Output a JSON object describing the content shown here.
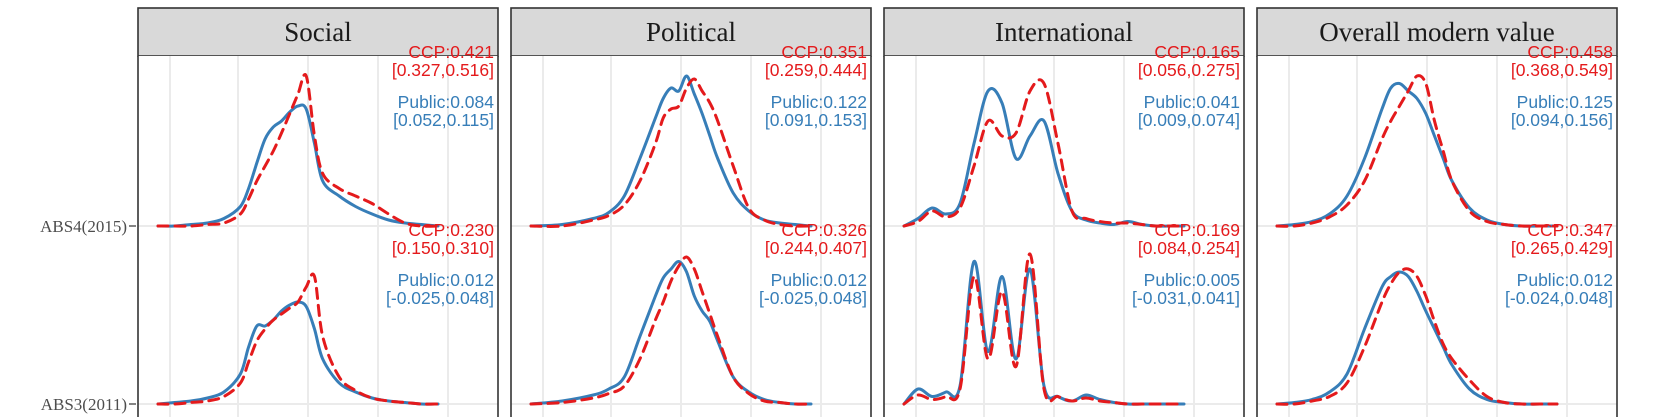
{
  "colors": {
    "ccp": "#e41a1c",
    "public": "#377eb8",
    "strip": "#d9d9d9",
    "grid": "#ebebeb",
    "border": "#333333"
  },
  "chart_data": {
    "type": "line",
    "title": "",
    "xlabel": "",
    "ylabel": "",
    "rows": [
      "ABS4(2015)",
      "ABS3(2011)"
    ],
    "grid": true,
    "panels": [
      {
        "title": "Social",
        "rows": [
          {
            "ccp_label": "CCP:0.421",
            "ccp_ci": "[0.327,0.516]",
            "public_label": "Public:0.084",
            "public_ci": "[0.052,0.115]",
            "xs": [
              -0.5,
              -0.4,
              -0.3,
              -0.2,
              -0.1,
              0.0,
              0.05,
              0.1,
              0.15,
              0.2,
              0.25,
              0.3,
              0.35,
              0.4,
              0.45,
              0.5,
              0.6,
              0.7,
              0.8,
              0.9,
              1.0,
              1.1,
              1.2
            ],
            "series": [
              {
                "name": "Public",
                "values": [
                  0,
                  0,
                  0.01,
                  0.02,
                  0.05,
                  0.13,
                  0.25,
                  0.42,
                  0.58,
                  0.66,
                  0.7,
                  0.76,
                  0.8,
                  0.78,
                  0.55,
                  0.3,
                  0.2,
                  0.13,
                  0.08,
                  0.04,
                  0.02,
                  0.01,
                  0
                ]
              },
              {
                "name": "CCP",
                "values": [
                  0,
                  0,
                  0,
                  0.01,
                  0.02,
                  0.08,
                  0.18,
                  0.3,
                  0.4,
                  0.5,
                  0.62,
                  0.75,
                  0.88,
                  1.0,
                  0.6,
                  0.35,
                  0.25,
                  0.2,
                  0.15,
                  0.08,
                  0.02,
                  0,
                  0
                ]
              }
            ]
          },
          {
            "ccp_label": "CCP:0.230",
            "ccp_ci": "[0.150,0.310]",
            "public_label": "Public:0.012",
            "public_ci": "[-0.025,0.048]",
            "xs": [
              -0.5,
              -0.4,
              -0.3,
              -0.2,
              -0.1,
              0.0,
              0.05,
              0.1,
              0.15,
              0.2,
              0.25,
              0.3,
              0.35,
              0.4,
              0.45,
              0.5,
              0.6,
              0.7,
              0.8,
              0.9,
              1.0,
              1.1,
              1.2
            ],
            "series": [
              {
                "name": "Public",
                "values": [
                  0,
                  0.01,
                  0.02,
                  0.04,
                  0.08,
                  0.2,
                  0.38,
                  0.52,
                  0.52,
                  0.56,
                  0.62,
                  0.66,
                  0.68,
                  0.65,
                  0.5,
                  0.3,
                  0.14,
                  0.08,
                  0.04,
                  0.02,
                  0.01,
                  0,
                  0
                ]
              },
              {
                "name": "CCP",
                "values": [
                  0,
                  0,
                  0.01,
                  0.02,
                  0.05,
                  0.14,
                  0.28,
                  0.42,
                  0.5,
                  0.56,
                  0.6,
                  0.64,
                  0.68,
                  0.78,
                  0.85,
                  0.45,
                  0.18,
                  0.09,
                  0.04,
                  0.02,
                  0.01,
                  0,
                  0
                ]
              }
            ]
          }
        ]
      },
      {
        "title": "Political",
        "rows": [
          {
            "ccp_label": "CCP:0.351",
            "ccp_ci": "[0.259,0.444]",
            "public_label": "Public:0.122",
            "public_ci": "[0.091,0.153]",
            "xs": [
              -0.8,
              -0.6,
              -0.4,
              -0.3,
              -0.2,
              -0.1,
              0.0,
              0.05,
              0.1,
              0.15,
              0.2,
              0.25,
              0.3,
              0.35,
              0.4,
              0.5,
              0.6,
              0.7,
              0.8,
              0.9,
              1.0
            ],
            "series": [
              {
                "name": "Public",
                "values": [
                  0,
                  0.01,
                  0.05,
                  0.09,
                  0.2,
                  0.45,
                  0.72,
                  0.85,
                  0.92,
                  0.9,
                  1.0,
                  0.88,
                  0.75,
                  0.6,
                  0.45,
                  0.22,
                  0.1,
                  0.04,
                  0.02,
                  0.01,
                  0
                ]
              },
              {
                "name": "CCP",
                "values": [
                  0,
                  0,
                  0.04,
                  0.07,
                  0.14,
                  0.3,
                  0.55,
                  0.72,
                  0.78,
                  0.8,
                  0.92,
                  0.98,
                  0.9,
                  0.82,
                  0.7,
                  0.4,
                  0.12,
                  0.04,
                  0.01,
                  0,
                  0
                ]
              }
            ]
          },
          {
            "ccp_label": "CCP:0.326",
            "ccp_ci": "[0.244,0.407]",
            "public_label": "Public:0.012",
            "public_ci": "[-0.025,0.048]",
            "xs": [
              -0.8,
              -0.6,
              -0.4,
              -0.3,
              -0.2,
              -0.1,
              0.0,
              0.05,
              0.1,
              0.15,
              0.2,
              0.25,
              0.3,
              0.35,
              0.4,
              0.5,
              0.6,
              0.7,
              0.8,
              0.9,
              1.0
            ],
            "series": [
              {
                "name": "Public",
                "values": [
                  0,
                  0.02,
                  0.06,
                  0.1,
                  0.18,
                  0.45,
                  0.72,
                  0.84,
                  0.9,
                  0.95,
                  0.88,
                  0.72,
                  0.62,
                  0.55,
                  0.42,
                  0.18,
                  0.08,
                  0.03,
                  0.01,
                  0,
                  0
                ]
              },
              {
                "name": "CCP",
                "values": [
                  0,
                  0.01,
                  0.04,
                  0.07,
                  0.12,
                  0.3,
                  0.56,
                  0.68,
                  0.82,
                  0.92,
                  0.98,
                  0.9,
                  0.75,
                  0.6,
                  0.45,
                  0.18,
                  0.07,
                  0.02,
                  0.01,
                  0,
                  0
                ]
              }
            ]
          }
        ]
      },
      {
        "title": "International",
        "rows": [
          {
            "ccp_label": "CCP:0.165",
            "ccp_ci": "[0.056,0.275]",
            "public_label": "Public:0.041",
            "public_ci": "[0.009,0.074]",
            "xs": [
              -1.0,
              -0.9,
              -0.8,
              -0.7,
              -0.6,
              -0.5,
              -0.4,
              -0.3,
              -0.2,
              -0.1,
              0.0,
              0.1,
              0.2,
              0.3,
              0.4,
              0.5,
              0.6,
              0.7,
              0.8,
              0.9,
              1.0
            ],
            "series": [
              {
                "name": "Public",
                "values": [
                  0,
                  0.05,
                  0.12,
                  0.08,
                  0.15,
                  0.55,
                  0.9,
                  0.82,
                  0.45,
                  0.6,
                  0.7,
                  0.35,
                  0.1,
                  0.04,
                  0.02,
                  0.01,
                  0.03,
                  0.01,
                  0,
                  0,
                  0
                ]
              },
              {
                "name": "CCP",
                "values": [
                  0,
                  0.03,
                  0.1,
                  0.06,
                  0.12,
                  0.4,
                  0.7,
                  0.6,
                  0.62,
                  0.9,
                  0.95,
                  0.55,
                  0.1,
                  0.05,
                  0.03,
                  0.02,
                  0.02,
                  0.01,
                  0,
                  0,
                  0
                ]
              }
            ]
          },
          {
            "ccp_label": "CCP:0.169",
            "ccp_ci": "[0.084,0.254]",
            "public_label": "Public:0.005",
            "public_ci": "[-0.031,0.041]",
            "xs": [
              -1.0,
              -0.9,
              -0.8,
              -0.7,
              -0.6,
              -0.5,
              -0.4,
              -0.3,
              -0.2,
              -0.1,
              0.0,
              0.1,
              0.2,
              0.3,
              0.4,
              0.5,
              0.6,
              0.7,
              0.8,
              0.9,
              1.0
            ],
            "series": [
              {
                "name": "Public",
                "values": [
                  0,
                  0.1,
                  0.05,
                  0.08,
                  0.12,
                  0.95,
                  0.35,
                  0.85,
                  0.3,
                  0.9,
                  0.12,
                  0.05,
                  0.02,
                  0.06,
                  0.03,
                  0.01,
                  0,
                  0,
                  0,
                  0,
                  0
                ]
              },
              {
                "name": "CCP",
                "values": [
                  0,
                  0.06,
                  0.03,
                  0.05,
                  0.1,
                  0.85,
                  0.3,
                  0.75,
                  0.25,
                  1.0,
                  0.1,
                  0.05,
                  0.02,
                  0.04,
                  0.02,
                  0.01,
                  0,
                  0,
                  0,
                  0,
                  0
                ]
              }
            ]
          }
        ]
      },
      {
        "title": "Overall modern value",
        "rows": [
          {
            "ccp_label": "CCP:0.458",
            "ccp_ci": "[0.368,0.549]",
            "public_label": "Public:0.125",
            "public_ci": "[0.094,0.156]",
            "xs": [
              -0.6,
              -0.5,
              -0.4,
              -0.3,
              -0.2,
              -0.1,
              0.0,
              0.05,
              0.1,
              0.15,
              0.2,
              0.25,
              0.3,
              0.35,
              0.4,
              0.5,
              0.6,
              0.7,
              0.8,
              0.9,
              1.0
            ],
            "series": [
              {
                "name": "Public",
                "values": [
                  0,
                  0.01,
                  0.03,
                  0.08,
                  0.2,
                  0.45,
                  0.78,
                  0.92,
                  0.95,
                  0.9,
                  0.85,
                  0.75,
                  0.6,
                  0.45,
                  0.3,
                  0.12,
                  0.04,
                  0.01,
                  0,
                  0,
                  0
                ]
              },
              {
                "name": "CCP",
                "values": [
                  0,
                  0,
                  0.02,
                  0.06,
                  0.14,
                  0.3,
                  0.58,
                  0.7,
                  0.8,
                  0.9,
                  1.0,
                  0.95,
                  0.7,
                  0.5,
                  0.3,
                  0.1,
                  0.03,
                  0.01,
                  0,
                  0,
                  0
                ]
              }
            ]
          },
          {
            "ccp_label": "CCP:0.347",
            "ccp_ci": "[0.265,0.429]",
            "public_label": "Public:0.012",
            "public_ci": "[-0.024,0.048]",
            "xs": [
              -0.6,
              -0.5,
              -0.4,
              -0.3,
              -0.2,
              -0.1,
              0.0,
              0.05,
              0.1,
              0.15,
              0.2,
              0.25,
              0.3,
              0.35,
              0.4,
              0.5,
              0.6,
              0.7,
              0.8,
              0.9,
              1.0
            ],
            "series": [
              {
                "name": "Public",
                "values": [
                  0,
                  0.01,
                  0.03,
                  0.08,
                  0.2,
                  0.5,
                  0.78,
                  0.85,
                  0.88,
                  0.85,
                  0.75,
                  0.62,
                  0.5,
                  0.38,
                  0.26,
                  0.1,
                  0.03,
                  0.01,
                  0,
                  0,
                  0
                ]
              },
              {
                "name": "CCP",
                "values": [
                  0,
                  0,
                  0.02,
                  0.05,
                  0.14,
                  0.38,
                  0.68,
                  0.8,
                  0.88,
                  0.9,
                  0.85,
                  0.72,
                  0.55,
                  0.4,
                  0.3,
                  0.16,
                  0.05,
                  0.01,
                  0,
                  0,
                  0
                ]
              }
            ]
          }
        ]
      }
    ]
  }
}
